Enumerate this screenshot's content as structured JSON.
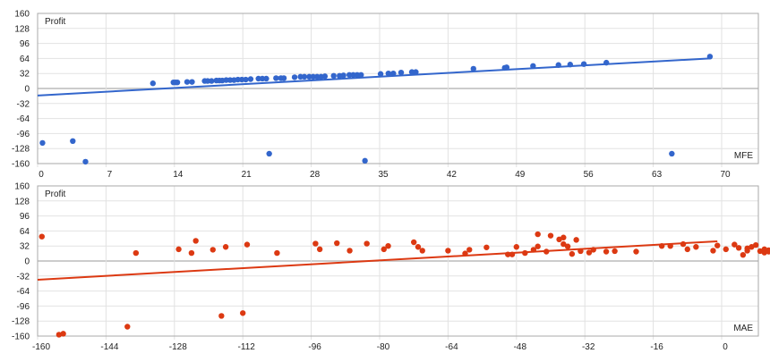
{
  "colors": {
    "background": "#ffffff",
    "grid": "#e2e2e2",
    "zero_line": "#cccccc",
    "border": "#aaaaaa",
    "series_mfe": "#3366cc",
    "series_mae": "#dc3912",
    "text": "#222222"
  },
  "chart_data": [
    {
      "type": "scatter",
      "title": "",
      "ylabel": "Profit",
      "xlabel": "MFE",
      "xlim": [
        0,
        73.8
      ],
      "ylim": [
        -160,
        160
      ],
      "x_ticks": [
        0,
        7,
        14,
        21,
        28,
        35,
        42,
        49,
        56,
        63,
        70
      ],
      "y_ticks": [
        160,
        128,
        96,
        64,
        32,
        0,
        -32,
        -64,
        -96,
        -128,
        -160
      ],
      "grid": true,
      "legend": "none",
      "series": [
        {
          "name": "MFE",
          "color": "#3366cc",
          "points": [
            [
              0.5,
              -116
            ],
            [
              3.6,
              -112
            ],
            [
              4.9,
              -156
            ],
            [
              11.8,
              11
            ],
            [
              13.9,
              13
            ],
            [
              14.1,
              13
            ],
            [
              14.3,
              13
            ],
            [
              15.3,
              14
            ],
            [
              15.8,
              14
            ],
            [
              17.1,
              16
            ],
            [
              17.4,
              16
            ],
            [
              17.8,
              16
            ],
            [
              18.3,
              17
            ],
            [
              18.6,
              17
            ],
            [
              18.9,
              17
            ],
            [
              19.3,
              18
            ],
            [
              19.7,
              18
            ],
            [
              20.1,
              18
            ],
            [
              20.5,
              19
            ],
            [
              20.9,
              19
            ],
            [
              21.3,
              19
            ],
            [
              21.8,
              20
            ],
            [
              22.6,
              21
            ],
            [
              23.0,
              21
            ],
            [
              23.4,
              21
            ],
            [
              24.4,
              22
            ],
            [
              24.9,
              22
            ],
            [
              25.2,
              22
            ],
            [
              26.3,
              24
            ],
            [
              26.9,
              25
            ],
            [
              27.3,
              25
            ],
            [
              27.8,
              25
            ],
            [
              28.2,
              25
            ],
            [
              28.6,
              25
            ],
            [
              29.0,
              25
            ],
            [
              29.4,
              26
            ],
            [
              30.3,
              27
            ],
            [
              30.9,
              27
            ],
            [
              31.3,
              28
            ],
            [
              31.9,
              29
            ],
            [
              32.3,
              29
            ],
            [
              32.7,
              29
            ],
            [
              33.1,
              29
            ],
            [
              35.1,
              31
            ],
            [
              35.9,
              32
            ],
            [
              36.4,
              32
            ],
            [
              37.2,
              34
            ],
            [
              38.3,
              35
            ],
            [
              38.7,
              35
            ],
            [
              44.6,
              42
            ],
            [
              47.8,
              44
            ],
            [
              48.0,
              45
            ],
            [
              50.7,
              48
            ],
            [
              53.3,
              50
            ],
            [
              54.5,
              51
            ],
            [
              55.9,
              52
            ],
            [
              58.2,
              55
            ],
            [
              23.7,
              -139
            ],
            [
              33.5,
              -154
            ],
            [
              64.9,
              -139
            ],
            [
              68.8,
              68
            ]
          ],
          "trendline": {
            "x0": 0,
            "y0": -15,
            "x1": 68.8,
            "y1": 64
          }
        }
      ]
    },
    {
      "type": "scatter",
      "title": "",
      "ylabel": "Profit",
      "xlabel": "MAE",
      "xlim": [
        -160,
        8.6
      ],
      "ylim": [
        -160,
        160
      ],
      "x_ticks": [
        -160,
        -144,
        -128,
        -112,
        -96,
        -80,
        -64,
        -48,
        -32,
        -16,
        0
      ],
      "y_ticks": [
        160,
        128,
        96,
        64,
        32,
        0,
        -32,
        -64,
        -96,
        -128,
        -160
      ],
      "grid": true,
      "legend": "none",
      "series": [
        {
          "name": "MAE",
          "color": "#dc3912",
          "points": [
            [
              -159,
              52
            ],
            [
              -155,
              -157
            ],
            [
              -154,
              -155
            ],
            [
              -139,
              -140
            ],
            [
              -137,
              17
            ],
            [
              -127,
              25
            ],
            [
              -124,
              17
            ],
            [
              -123,
              43
            ],
            [
              -119,
              24
            ],
            [
              -117,
              -117
            ],
            [
              -116,
              30
            ],
            [
              -112,
              -111
            ],
            [
              -111,
              35
            ],
            [
              -104,
              17
            ],
            [
              -95,
              37
            ],
            [
              -94,
              25
            ],
            [
              -90,
              38
            ],
            [
              -87,
              22
            ],
            [
              -83,
              37
            ],
            [
              -79,
              25
            ],
            [
              -78,
              32
            ],
            [
              -72,
              40
            ],
            [
              -71,
              30
            ],
            [
              -70,
              22
            ],
            [
              -64,
              22
            ],
            [
              -60,
              16
            ],
            [
              -59,
              24
            ],
            [
              -55,
              29
            ],
            [
              -49,
              14
            ],
            [
              -43,
              31
            ],
            [
              -41,
              20
            ],
            [
              -50,
              14
            ],
            [
              -48,
              30
            ],
            [
              -44,
              24
            ],
            [
              -46,
              17
            ],
            [
              -43,
              57
            ],
            [
              -40,
              54
            ],
            [
              -38,
              46
            ],
            [
              -37,
              36
            ],
            [
              -36,
              31
            ],
            [
              -37,
              50
            ],
            [
              -35,
              15
            ],
            [
              -33,
              21
            ],
            [
              -34,
              45
            ],
            [
              -31,
              18
            ],
            [
              -30,
              24
            ],
            [
              -27,
              20
            ],
            [
              -25,
              21
            ],
            [
              -20,
              20
            ],
            [
              -14,
              32
            ],
            [
              -12,
              32
            ],
            [
              -9,
              36
            ],
            [
              -8,
              25
            ],
            [
              -6,
              30
            ],
            [
              -2,
              22
            ],
            [
              -1,
              33
            ],
            [
              1,
              25
            ],
            [
              3,
              35
            ],
            [
              4,
              28
            ],
            [
              5,
              13
            ],
            [
              6,
              22
            ],
            [
              6,
              27
            ],
            [
              7,
              30
            ],
            [
              8,
              34
            ],
            [
              9,
              21
            ],
            [
              10,
              18
            ],
            [
              10,
              25
            ],
            [
              11,
              23
            ],
            [
              11,
              20
            ],
            [
              12,
              22
            ],
            [
              14,
              17
            ],
            [
              15,
              68
            ],
            [
              16,
              21
            ],
            [
              17,
              27
            ],
            [
              19,
              19
            ],
            [
              20,
              21
            ],
            [
              20,
              17
            ]
          ],
          "trendline": {
            "x0": -160,
            "y0": -40,
            "x1": -1,
            "y1": 42
          }
        }
      ]
    }
  ]
}
